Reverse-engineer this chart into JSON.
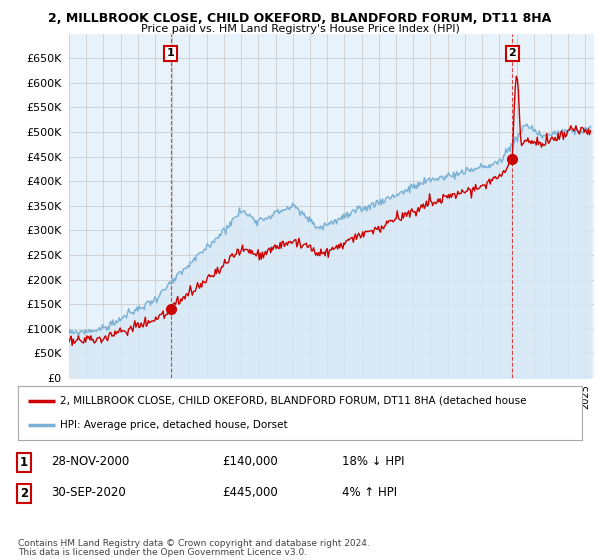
{
  "title": "2, MILLBROOK CLOSE, CHILD OKEFORD, BLANDFORD FORUM, DT11 8HA",
  "subtitle": "Price paid vs. HM Land Registry's House Price Index (HPI)",
  "yticks": [
    0,
    50000,
    100000,
    150000,
    200000,
    250000,
    300000,
    350000,
    400000,
    450000,
    500000,
    550000,
    600000,
    650000
  ],
  "xlim_start": 1995.0,
  "xlim_end": 2025.5,
  "t1": 2000.91,
  "p1": 140000,
  "t2": 2020.75,
  "p2": 445000,
  "legend_label_red": "2, MILLBROOK CLOSE, CHILD OKEFORD, BLANDFORD FORUM, DT11 8HA (detached house",
  "legend_label_blue": "HPI: Average price, detached house, Dorset",
  "footer": "Contains HM Land Registry data © Crown copyright and database right 2024.\nThis data is licensed under the Open Government Licence v3.0.",
  "red_color": "#cc0000",
  "blue_color": "#7ab0d4",
  "blue_fill": "#d6e8f5",
  "grid_color": "#cccccc",
  "bg_plot": "#e8f2fa",
  "background_color": "#ffffff"
}
